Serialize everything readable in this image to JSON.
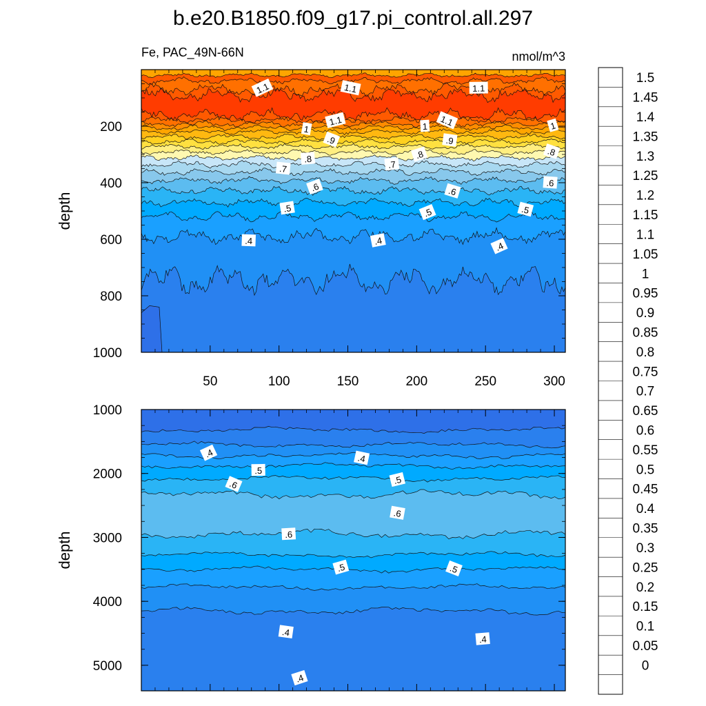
{
  "title": "b.e20.B1850.f09_g17.pi_control.all.297",
  "left_subtitle": "Fe, PAC_49N-66N",
  "right_subtitle": "nmol/m^3",
  "chart_data": [
    {
      "type": "contour",
      "panel": "upper",
      "xlabel": "",
      "ylabel": "depth",
      "xlim": [
        0,
        308
      ],
      "ylim": [
        1000,
        0
      ],
      "x_ticks": [
        "50",
        "100",
        "150",
        "200",
        "250",
        "300"
      ],
      "x_tick_values": [
        50,
        100,
        150,
        200,
        250,
        300
      ],
      "y_ticks": [
        "200",
        "400",
        "600",
        "800",
        "1000"
      ],
      "y_tick_values": [
        200,
        400,
        600,
        800,
        1000
      ],
      "contour_levels_shown": [
        1.1,
        1.0,
        0.9,
        0.8,
        0.7,
        0.6,
        0.5,
        0.4
      ],
      "contour_labels": [
        {
          "text": "1.1",
          "x": 88,
          "y": 65
        },
        {
          "text": "1.1",
          "x": 152,
          "y": 65
        },
        {
          "text": "1.1",
          "x": 245,
          "y": 65
        },
        {
          "text": "1.1",
          "x": 141,
          "y": 180
        },
        {
          "text": "1.1",
          "x": 222,
          "y": 180
        },
        {
          "text": "1",
          "x": 120,
          "y": 210
        },
        {
          "text": "1",
          "x": 206,
          "y": 200
        },
        {
          "text": "1",
          "x": 299,
          "y": 198
        },
        {
          "text": ".9",
          "x": 138,
          "y": 248
        },
        {
          "text": ".9",
          "x": 224,
          "y": 250
        },
        {
          "text": ".8",
          "x": 121,
          "y": 315
        },
        {
          "text": ".8",
          "x": 202,
          "y": 300
        },
        {
          "text": ".8",
          "x": 298,
          "y": 290
        },
        {
          "text": ".7",
          "x": 103,
          "y": 350
        },
        {
          "text": ".7",
          "x": 182,
          "y": 335
        },
        {
          "text": ".6",
          "x": 126,
          "y": 415
        },
        {
          "text": ".6",
          "x": 226,
          "y": 430
        },
        {
          "text": ".6",
          "x": 297,
          "y": 400
        },
        {
          "text": ".5",
          "x": 106,
          "y": 490
        },
        {
          "text": ".5",
          "x": 208,
          "y": 505
        },
        {
          "text": ".5",
          "x": 279,
          "y": 495
        },
        {
          "text": ".4",
          "x": 78,
          "y": 605
        },
        {
          "text": ".4",
          "x": 172,
          "y": 605
        },
        {
          "text": ".4",
          "x": 260,
          "y": 625
        }
      ]
    },
    {
      "type": "contour",
      "panel": "lower",
      "xlabel": "",
      "ylabel": "depth",
      "xlim": [
        0,
        308
      ],
      "ylim": [
        5400,
        1000
      ],
      "y_ticks": [
        "1000",
        "2000",
        "3000",
        "4000",
        "5000"
      ],
      "y_tick_values": [
        1000,
        2000,
        3000,
        4000,
        5000
      ],
      "contour_labels": [
        {
          "text": ".4",
          "x": 49,
          "y": 1680
        },
        {
          "text": ".4",
          "x": 160,
          "y": 1760
        },
        {
          "text": ".5",
          "x": 85,
          "y": 1950
        },
        {
          "text": ".5",
          "x": 186,
          "y": 2100
        },
        {
          "text": ".6",
          "x": 67,
          "y": 2170
        },
        {
          "text": ".6",
          "x": 186,
          "y": 2620
        },
        {
          "text": ".6",
          "x": 107,
          "y": 2950
        },
        {
          "text": ".5",
          "x": 145,
          "y": 3470
        },
        {
          "text": ".5",
          "x": 227,
          "y": 3490
        },
        {
          "text": ".4",
          "x": 105,
          "y": 4480
        },
        {
          "text": ".4",
          "x": 248,
          "y": 4590
        },
        {
          "text": ".4",
          "x": 115,
          "y": 5200
        }
      ]
    }
  ],
  "colorbar": {
    "labels": [
      "1.5",
      "1.45",
      "1.4",
      "1.35",
      "1.3",
      "1.25",
      "1.2",
      "1.15",
      "1.1",
      "1.05",
      "1",
      "0.95",
      "0.9",
      "0.85",
      "0.8",
      "0.75",
      "0.7",
      "0.65",
      "0.6",
      "0.55",
      "0.5",
      "0.45",
      "0.4",
      "0.35",
      "0.3",
      "0.25",
      "0.2",
      "0.15",
      "0.1",
      "0.05",
      "0"
    ],
    "colors": [
      "#ffb3b8",
      "#e8636b",
      "#d42a2a",
      "#d10a0a",
      "#ee0000",
      "#ff1a00",
      "#ff3c00",
      "#ff5a00",
      "#ff7000",
      "#ff8c00",
      "#ffa500",
      "#ffb810",
      "#ffd020",
      "#ffe040",
      "#ffee80",
      "#fff8b0",
      "#c8e6f8",
      "#a8d8f0",
      "#88c8ec",
      "#5cbcf0",
      "#2ab4f5",
      "#00aaff",
      "#1aa0ff",
      "#2090f5",
      "#2a80ee",
      "#2e70e8",
      "#3060e0",
      "#2040f0",
      "#0a1cff",
      "#3a20ff",
      "#6010ff",
      "#8a30ff"
    ]
  }
}
